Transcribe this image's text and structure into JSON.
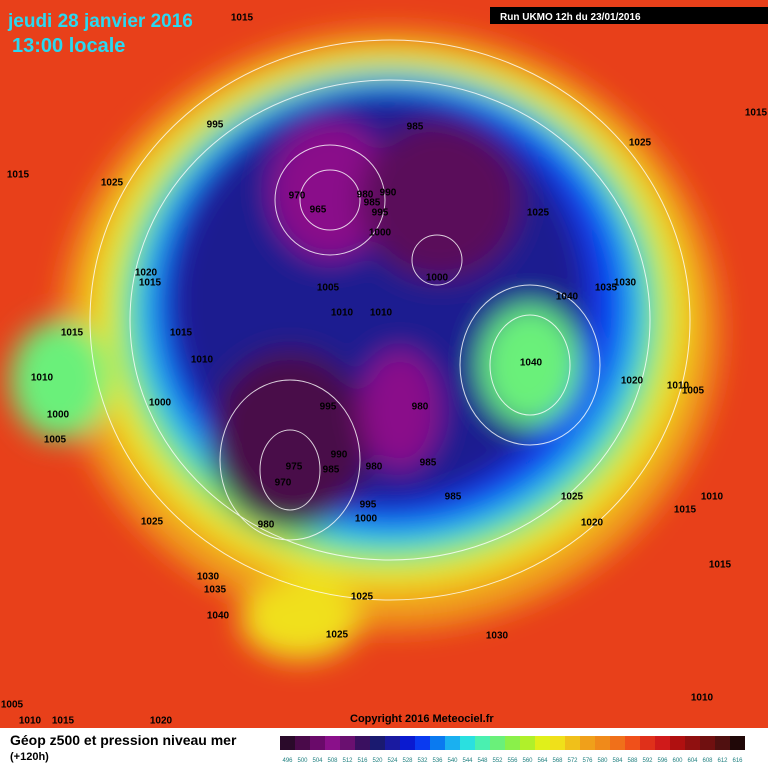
{
  "header": {
    "date": "jeudi 28 janvier 2016",
    "time": "13:00 locale",
    "run": "Run UKMO 12h du 23/01/2016"
  },
  "copyright": "Copyright 2016 Meteociel.fr",
  "legend": {
    "title": "Géop z500 et pression niveau mer",
    "subtitle": "(+120h)",
    "scale": [
      {
        "label": "496",
        "color": "#2a0a2a"
      },
      {
        "label": "500",
        "color": "#4a0a4a"
      },
      {
        "label": "504",
        "color": "#6a0a6a"
      },
      {
        "label": "508",
        "color": "#8a108a"
      },
      {
        "label": "512",
        "color": "#6a1070"
      },
      {
        "label": "516",
        "color": "#3a1060"
      },
      {
        "label": "520",
        "color": "#1a1a70"
      },
      {
        "label": "524",
        "color": "#1a1aa0"
      },
      {
        "label": "528",
        "color": "#0a1ad0"
      },
      {
        "label": "532",
        "color": "#0a3af0"
      },
      {
        "label": "536",
        "color": "#0a7af0"
      },
      {
        "label": "540",
        "color": "#1ab0f0"
      },
      {
        "label": "544",
        "color": "#2ae0e0"
      },
      {
        "label": "548",
        "color": "#4af0b0"
      },
      {
        "label": "552",
        "color": "#6af07a"
      },
      {
        "label": "556",
        "color": "#8af04a"
      },
      {
        "label": "560",
        "color": "#b0f02a"
      },
      {
        "label": "564",
        "color": "#e0f01a"
      },
      {
        "label": "568",
        "color": "#f0e01a"
      },
      {
        "label": "572",
        "color": "#f0c01a"
      },
      {
        "label": "576",
        "color": "#f0a01a"
      },
      {
        "label": "580",
        "color": "#f08a1a"
      },
      {
        "label": "584",
        "color": "#f0701a"
      },
      {
        "label": "588",
        "color": "#f0501a"
      },
      {
        "label": "592",
        "color": "#e0301a"
      },
      {
        "label": "596",
        "color": "#d01a1a"
      },
      {
        "label": "600",
        "color": "#b01010"
      },
      {
        "label": "604",
        "color": "#901010"
      },
      {
        "label": "608",
        "color": "#701010"
      },
      {
        "label": "612",
        "color": "#501010"
      },
      {
        "label": "616",
        "color": "#200808"
      }
    ]
  },
  "isobar_labels": [
    "1015",
    "995",
    "1015",
    "1025",
    "985",
    "1025",
    "970",
    "965",
    "980",
    "990",
    "985",
    "995",
    "1000",
    "1025",
    "1000",
    "1020",
    "1015",
    "1040",
    "1035",
    "1030",
    "1005",
    "1010",
    "1010",
    "1015",
    "1015",
    "1010",
    "1040",
    "1010",
    "1020",
    "1010",
    "1005",
    "1000",
    "995",
    "980",
    "1000",
    "1005",
    "990",
    "985",
    "980",
    "975",
    "985",
    "970",
    "985",
    "995",
    "1025",
    "1010",
    "1015",
    "1000",
    "1020",
    "1025",
    "980",
    "1015",
    "1030",
    "1035",
    "1025",
    "1040",
    "1025",
    "1030",
    "1005",
    "1010",
    "1010",
    "1015",
    "1020",
    "1015"
  ]
}
